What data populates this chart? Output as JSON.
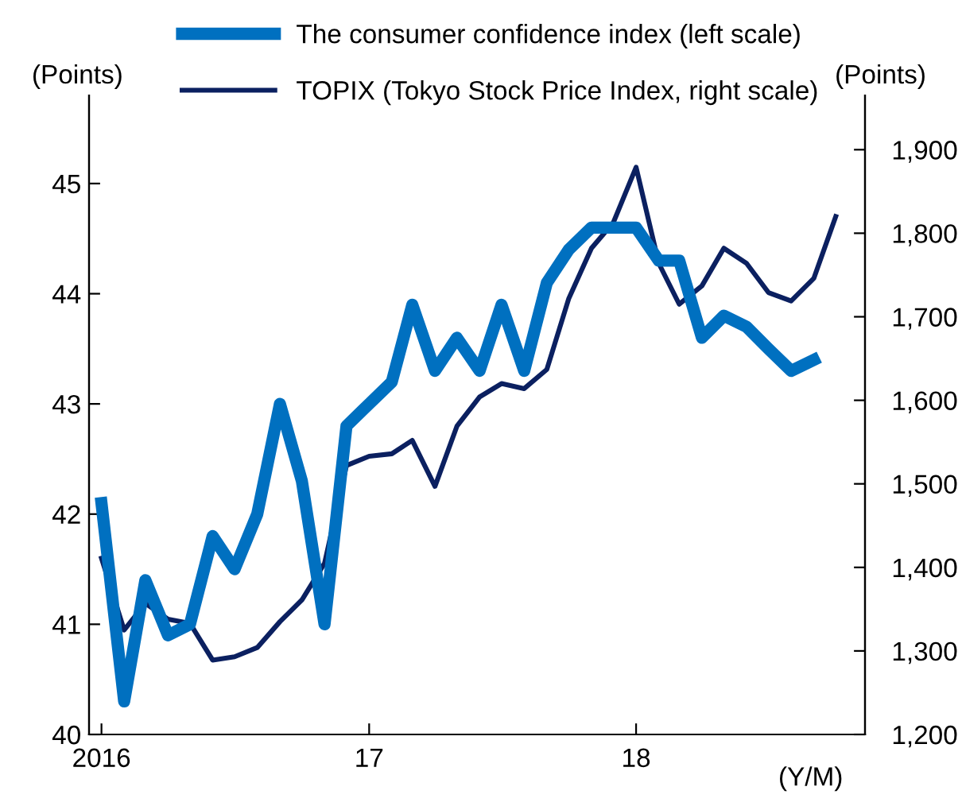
{
  "chart_data": {
    "type": "line",
    "x": [
      "2016-01",
      "2016-02",
      "2016-03",
      "2016-04",
      "2016-05",
      "2016-06",
      "2016-07",
      "2016-08",
      "2016-09",
      "2016-10",
      "2016-11",
      "2016-12",
      "2017-01",
      "2017-02",
      "2017-03",
      "2017-04",
      "2017-05",
      "2017-06",
      "2017-07",
      "2017-08",
      "2017-09",
      "2017-10",
      "2017-11",
      "2017-12",
      "2018-01",
      "2018-02",
      "2018-03",
      "2018-04",
      "2018-05",
      "2018-06",
      "2018-07",
      "2018-08",
      "2018-09",
      "2018-10"
    ],
    "series": [
      {
        "name": "The consumer confidence index (left scale)",
        "color": "#0070c0",
        "axis": "y",
        "values": [
          42.1,
          40.3,
          41.4,
          40.9,
          41.0,
          41.8,
          41.5,
          42.0,
          43.0,
          42.3,
          41.0,
          42.8,
          43.0,
          43.2,
          43.9,
          43.3,
          43.6,
          43.3,
          43.9,
          43.3,
          44.1,
          44.4,
          44.6,
          44.6,
          44.6,
          44.3,
          44.3,
          43.6,
          43.8,
          43.7,
          43.5,
          43.3,
          43.4,
          null
        ]
      },
      {
        "name": "TOPIX (Tokyo Stock Price Index, right scale)",
        "color": "#0b2060",
        "axis": "y2",
        "values": [
          1411,
          1325,
          1357,
          1338,
          1333,
          1289,
          1293,
          1304,
          1335,
          1361,
          1405,
          1522,
          1533,
          1536,
          1552,
          1497,
          1569,
          1604,
          1620,
          1614,
          1637,
          1722,
          1782,
          1813,
          1879,
          1764,
          1715,
          1737,
          1782,
          1764,
          1729,
          1719,
          1746,
          1820
        ]
      }
    ],
    "xlim": [
      "2015-12-15",
      "2018-11-10"
    ],
    "xticks": [
      {
        "value": "2016-01",
        "label": "2016"
      },
      {
        "value": "2017-01",
        "label": "17"
      },
      {
        "value": "2018-01",
        "label": "18"
      }
    ],
    "xlabel": "(Y/M)",
    "ylabel": "(Points)",
    "y2label": "(Points)",
    "ylim": [
      40,
      45.8
    ],
    "yticks": [
      40,
      41,
      42,
      43,
      44,
      45
    ],
    "y2lim": [
      1200,
      1965
    ],
    "y2ticks": [
      {
        "value": 1200,
        "label": "1,200"
      },
      {
        "value": 1300,
        "label": "1,300"
      },
      {
        "value": 1400,
        "label": "1,400"
      },
      {
        "value": 1500,
        "label": "1,500"
      },
      {
        "value": 1600,
        "label": "1,600"
      },
      {
        "value": 1700,
        "label": "1,700"
      },
      {
        "value": 1800,
        "label": "1,800"
      },
      {
        "value": 1900,
        "label": "1,900"
      }
    ],
    "grid": false,
    "legend": "top",
    "marker": "none",
    "line_style": "solid"
  }
}
